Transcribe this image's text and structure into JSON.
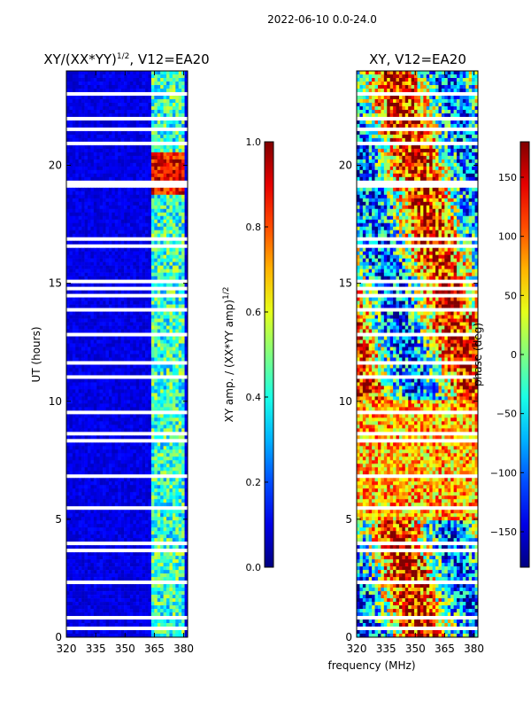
{
  "figure": {
    "suptitle": "2022-06-10 0.0-24.0"
  },
  "chart_data": [
    {
      "type": "heatmap",
      "title": "XY/(XX*YY)",
      "title_exponent": "1/2",
      "title_suffix": ", V12=EA20",
      "xlabel": "",
      "ylabel": "UT (hours)",
      "xlim": [
        320,
        382
      ],
      "ylim": [
        0,
        24
      ],
      "x_ticks": [
        320,
        335,
        350,
        365,
        380
      ],
      "y_ticks": [
        0,
        5,
        10,
        15,
        20
      ],
      "value_quantity": "XY amplitude normalized",
      "colormap": "jet",
      "bright_channel_band_mhz": [
        363,
        381
      ],
      "hot_time_band_hours": [
        18.8,
        20.6
      ],
      "colorbar": {
        "label": "XY amp. / (XX*YY amp)",
        "label_exponent": "1/2",
        "range": [
          0.0,
          1.0
        ],
        "ticks": [
          "0.0",
          "0.2",
          "0.4",
          "0.6",
          "0.8",
          "1.0"
        ]
      }
    },
    {
      "type": "heatmap",
      "title": "XY, V12=EA20",
      "xlabel": "frequency (MHz)",
      "ylabel": "",
      "xlim": [
        320,
        382
      ],
      "ylim": [
        0,
        24
      ],
      "x_ticks": [
        320,
        335,
        350,
        365,
        380
      ],
      "y_ticks": [
        0,
        5,
        10,
        15,
        20
      ],
      "value_quantity": "XY phase",
      "colormap": "jet",
      "colorbar": {
        "label": "phase (deg)",
        "range": [
          -180,
          180
        ],
        "ticks": [
          -150,
          -100,
          -50,
          0,
          50,
          100,
          150
        ]
      }
    }
  ]
}
